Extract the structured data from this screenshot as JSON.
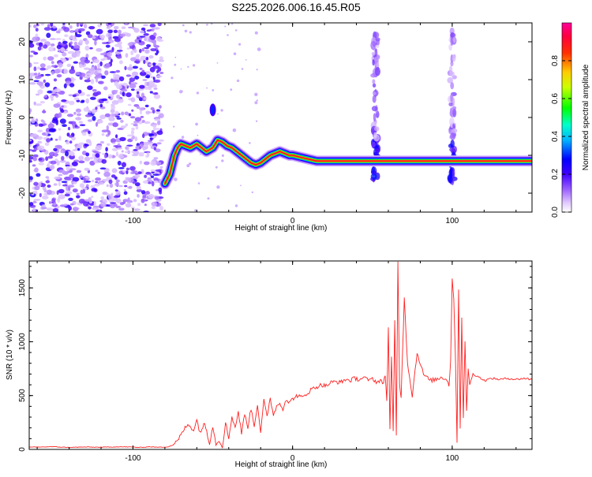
{
  "figure_title": "S225.2026.006.16.45.R05",
  "chart_data": [
    {
      "type": "heatmap",
      "title": "S225.2026.006.16.45.R05",
      "xlabel": "Height of straight line (km)",
      "ylabel": "Frequency (Hz)",
      "xlim": [
        -165,
        150
      ],
      "ylim": [
        -25,
        25
      ],
      "xticks": [
        -100,
        0,
        100
      ],
      "yticks": [
        -20,
        -10,
        0,
        10,
        20
      ],
      "colorbar": {
        "label": "Normalized spectral amplitude",
        "range": [
          0,
          1
        ],
        "ticks": [
          "0.0",
          "0.2",
          "0.4",
          "0.6",
          "0.8"
        ],
        "colormap": [
          "#ffffff",
          "#c9a8ff",
          "#5a00ff",
          "#0000ff",
          "#00ffff",
          "#00ff00",
          "#ffff00",
          "#ff0000",
          "#ff007f"
        ]
      },
      "noise_region_x": [
        -165,
        -82
      ],
      "ridge": {
        "x": [
          -80,
          -77,
          -74,
          -72,
          -70,
          -67,
          -64,
          -60,
          -57,
          -54,
          -50,
          -47,
          -44,
          -41,
          -38,
          -35,
          -32,
          -29,
          -26,
          -23,
          -20,
          -17,
          -14,
          -11,
          -8,
          -5,
          -2,
          0,
          5,
          10,
          15,
          20,
          30,
          40,
          50,
          60,
          70,
          80,
          90,
          100,
          110,
          120,
          130,
          140,
          150
        ],
        "y": [
          -17.5,
          -15,
          -10,
          -8,
          -7,
          -7.5,
          -8,
          -7,
          -8,
          -9,
          -8,
          -6,
          -6.5,
          -7.5,
          -8,
          -9,
          -10,
          -11,
          -12,
          -12.5,
          -12,
          -11,
          -10,
          -9.5,
          -9,
          -9.5,
          -10,
          -10,
          -10.5,
          -11,
          -11.5,
          -11.5,
          -11.5,
          -11.5,
          -11.5,
          -11.5,
          -11.5,
          -11.5,
          -11.5,
          -11.5,
          -11.5,
          -11.5,
          -11.5,
          -11.5,
          -11.5
        ]
      },
      "vertical_disturbances_x": [
        52,
        100
      ]
    },
    {
      "type": "line",
      "xlabel": "Height of straight line (km)",
      "ylabel": "SNR (10 * v/v)",
      "xlim": [
        -165,
        150
      ],
      "ylim": [
        0,
        1750
      ],
      "xticks": [
        -100,
        0,
        100
      ],
      "yticks": [
        0,
        500,
        1000,
        1500
      ],
      "color": "#ff2020",
      "x": [
        -165,
        -150,
        -140,
        -130,
        -120,
        -110,
        -100,
        -95,
        -90,
        -85,
        -80,
        -78,
        -75,
        -72,
        -70,
        -68,
        -65,
        -62,
        -60,
        -58,
        -55,
        -52,
        -50,
        -48,
        -46,
        -44,
        -42,
        -40,
        -38,
        -36,
        -34,
        -32,
        -30,
        -28,
        -26,
        -24,
        -22,
        -20,
        -18,
        -16,
        -14,
        -12,
        -10,
        -8,
        -6,
        -4,
        -2,
        0,
        3,
        6,
        9,
        12,
        15,
        18,
        21,
        24,
        27,
        30,
        33,
        36,
        39,
        42,
        45,
        48,
        50,
        53,
        55,
        57,
        58,
        59,
        60,
        61,
        62,
        63,
        64,
        65,
        66,
        67,
        68,
        70,
        72,
        75,
        78,
        82,
        86,
        90,
        93,
        96,
        98,
        99,
        100,
        101,
        102,
        103,
        104,
        105,
        106,
        107,
        108,
        109,
        110,
        111,
        113,
        116,
        120,
        125,
        130,
        135,
        140,
        145,
        150
      ],
      "y": [
        20,
        25,
        18,
        22,
        20,
        24,
        22,
        18,
        25,
        20,
        22,
        25,
        40,
        80,
        130,
        190,
        230,
        180,
        270,
        160,
        240,
        60,
        220,
        40,
        90,
        15,
        250,
        100,
        310,
        200,
        350,
        150,
        330,
        210,
        380,
        220,
        420,
        160,
        450,
        300,
        480,
        320,
        400,
        430,
        380,
        470,
        430,
        470,
        500,
        480,
        520,
        560,
        580,
        600,
        590,
        620,
        630,
        620,
        650,
        640,
        660,
        650,
        670,
        640,
        660,
        620,
        650,
        600,
        700,
        450,
        1120,
        200,
        850,
        150,
        1200,
        120,
        1750,
        620,
        480,
        1420,
        800,
        500,
        900,
        700,
        640,
        650,
        670,
        660,
        600,
        820,
        1600,
        1400,
        880,
        80,
        1500,
        200,
        1220,
        300,
        1000,
        350,
        760,
        600,
        700,
        680,
        640,
        660,
        650,
        660,
        650,
        660,
        650
      ]
    }
  ]
}
